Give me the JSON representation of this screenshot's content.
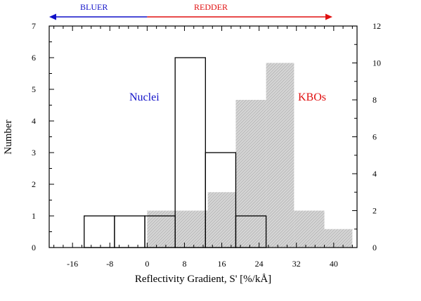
{
  "chart_data": {
    "type": "bar",
    "title": "",
    "xlabel": "Reflectivity Gradient, S' [%/kÅ]",
    "ylabel": "Number",
    "xlim": [
      -21,
      45
    ],
    "ylim": [
      0,
      7
    ],
    "y2lim": [
      0,
      12
    ],
    "grid": false,
    "x_ticks": [
      -16,
      -8,
      0,
      8,
      16,
      24,
      32,
      40
    ],
    "y_ticks": [
      0,
      1,
      2,
      3,
      4,
      5,
      6,
      7
    ],
    "y2_ticks": [
      0,
      2,
      4,
      6,
      8,
      10,
      12
    ],
    "series": [
      {
        "name": "KBOs",
        "axis": "right",
        "style": "hatched",
        "color": "#bdbdbd",
        "bins": [
          {
            "x0": 0,
            "x1": 6.5,
            "value": 2
          },
          {
            "x0": 6.5,
            "x1": 13,
            "value": 2
          },
          {
            "x0": 13,
            "x1": 19,
            "value": 3
          },
          {
            "x0": 19,
            "x1": 25.5,
            "value": 8
          },
          {
            "x0": 25.5,
            "x1": 31.5,
            "value": 10
          },
          {
            "x0": 31.5,
            "x1": 38,
            "value": 2
          },
          {
            "x0": 38,
            "x1": 44,
            "value": 1
          }
        ]
      },
      {
        "name": "Nuclei",
        "axis": "left",
        "style": "outline",
        "color": "#000000",
        "bins": [
          {
            "x0": -13.5,
            "x1": -7,
            "value": 1
          },
          {
            "x0": -7,
            "x1": -0.5,
            "value": 1
          },
          {
            "x0": -0.5,
            "x1": 6,
            "value": 1
          },
          {
            "x0": 6,
            "x1": 12.5,
            "value": 6
          },
          {
            "x0": 12.5,
            "x1": 19,
            "value": 3
          },
          {
            "x0": 19,
            "x1": 25.5,
            "value": 1
          }
        ]
      }
    ],
    "annotations": [
      {
        "text": "Nuclei",
        "color": "#1010c8"
      },
      {
        "text": "KBOs",
        "color": "#e01010"
      }
    ],
    "direction_arrows": {
      "bluer": {
        "label": "BLUER",
        "color": "#1010c8"
      },
      "redder": {
        "label": "REDDER",
        "color": "#e01010"
      }
    }
  }
}
